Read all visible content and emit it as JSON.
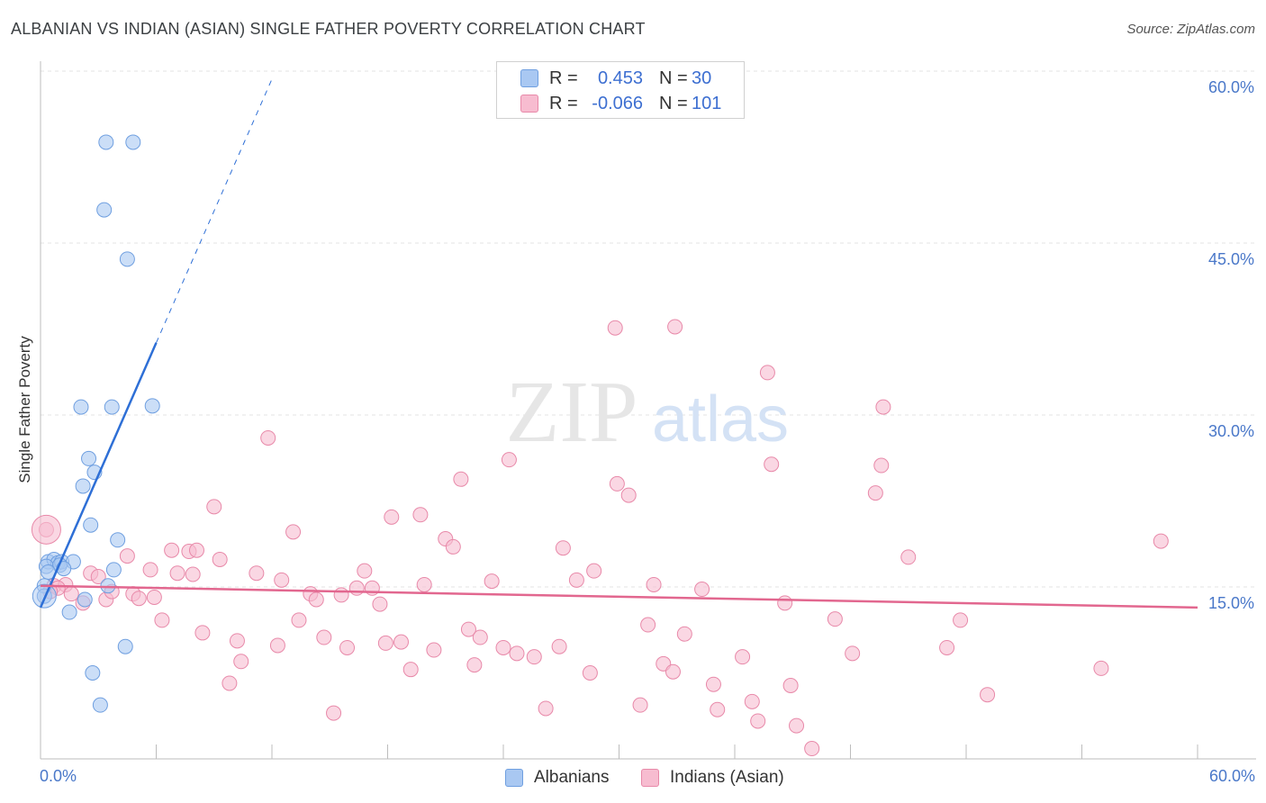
{
  "title": "ALBANIAN VS INDIAN (ASIAN) SINGLE FATHER POVERTY CORRELATION CHART",
  "source": "Source: ZipAtlas.com",
  "watermark": {
    "zip": "ZIP",
    "atlas": "atlas"
  },
  "legend": {
    "rows": [
      {
        "r_label": "R =",
        "r_value": "0.453",
        "n_label": "N =",
        "n_value": "30",
        "color": "#a9c8f2",
        "border": "#6f9fe0"
      },
      {
        "r_label": "R =",
        "r_value": "-0.066",
        "n_label": "N =",
        "n_value": "101",
        "color": "#f7bcd0",
        "border": "#e889a9"
      }
    ]
  },
  "bottom_legend": [
    {
      "label": "Albanians",
      "color": "#a9c8f2",
      "border": "#6f9fe0"
    },
    {
      "label": "Indians (Asian)",
      "color": "#f7bcd0",
      "border": "#e889a9"
    }
  ],
  "chart_data": {
    "type": "scatter",
    "title": "ALBANIAN VS INDIAN (ASIAN) SINGLE FATHER POVERTY CORRELATION CHART",
    "xlabel": "",
    "ylabel": "Single Father Poverty",
    "xlim": [
      0,
      60
    ],
    "ylim": [
      0,
      60
    ],
    "x_tick_labels": [
      "0.0%",
      "60.0%"
    ],
    "y_tick_labels": [
      "15.0%",
      "30.0%",
      "45.0%",
      "60.0%"
    ],
    "y_ticks": [
      15,
      30,
      45,
      60
    ],
    "grid": "horizontal dashed",
    "legend_position": "top-center",
    "series": [
      {
        "name": "Albanians",
        "color": "#6f9fe0",
        "fill": "#a9c8f2",
        "r": 0.453,
        "n": 30,
        "trend": {
          "x0": 0.0,
          "y0": 13.2,
          "x1": 6.0,
          "y1": 36.3,
          "dash_x1": 12.0,
          "dash_y1": 59.3,
          "color": "#2e6fd6"
        },
        "points": [
          [
            3.4,
            53.8
          ],
          [
            4.8,
            53.8
          ],
          [
            3.3,
            47.9
          ],
          [
            4.5,
            43.6
          ],
          [
            2.1,
            30.7
          ],
          [
            3.7,
            30.7
          ],
          [
            5.8,
            30.8
          ],
          [
            2.5,
            26.2
          ],
          [
            2.8,
            25.0
          ],
          [
            2.2,
            23.8
          ],
          [
            2.6,
            20.4
          ],
          [
            4.0,
            19.1
          ],
          [
            0.4,
            17.2
          ],
          [
            0.7,
            17.4
          ],
          [
            0.9,
            17.1
          ],
          [
            1.1,
            17.2
          ],
          [
            1.7,
            17.2
          ],
          [
            0.3,
            16.8
          ],
          [
            1.0,
            16.9
          ],
          [
            1.2,
            16.6
          ],
          [
            3.8,
            16.5
          ],
          [
            0.4,
            16.3
          ],
          [
            0.2,
            15.1
          ],
          [
            3.5,
            15.1
          ],
          [
            2.3,
            13.9
          ],
          [
            1.5,
            12.8
          ],
          [
            4.4,
            9.8
          ],
          [
            2.7,
            7.5
          ],
          [
            3.1,
            4.7
          ],
          [
            0.2,
            14.2
          ]
        ]
      },
      {
        "name": "Indians (Asian)",
        "color": "#e889a9",
        "fill": "#f7bcd0",
        "r": -0.066,
        "n": 101,
        "trend": {
          "x0": 0.0,
          "y0": 15.1,
          "x1": 60.0,
          "y1": 13.2,
          "color": "#e2678f"
        },
        "points": [
          [
            0.3,
            20.0
          ],
          [
            0.7,
            15.1
          ],
          [
            1.3,
            15.2
          ],
          [
            0.9,
            14.9
          ],
          [
            1.6,
            14.4
          ],
          [
            2.2,
            13.6
          ],
          [
            2.6,
            16.2
          ],
          [
            3.0,
            15.9
          ],
          [
            3.4,
            13.9
          ],
          [
            3.7,
            14.6
          ],
          [
            4.5,
            17.7
          ],
          [
            4.8,
            14.4
          ],
          [
            5.1,
            14.0
          ],
          [
            5.7,
            16.5
          ],
          [
            5.9,
            14.1
          ],
          [
            6.3,
            12.1
          ],
          [
            6.8,
            18.2
          ],
          [
            7.1,
            16.2
          ],
          [
            7.7,
            18.1
          ],
          [
            7.9,
            16.1
          ],
          [
            8.1,
            18.2
          ],
          [
            8.4,
            11.0
          ],
          [
            9.0,
            22.0
          ],
          [
            9.3,
            17.4
          ],
          [
            9.8,
            6.6
          ],
          [
            10.2,
            10.3
          ],
          [
            10.4,
            8.5
          ],
          [
            11.2,
            16.2
          ],
          [
            11.8,
            28.0
          ],
          [
            12.3,
            9.9
          ],
          [
            12.5,
            15.6
          ],
          [
            13.1,
            19.8
          ],
          [
            13.4,
            12.1
          ],
          [
            14.0,
            14.4
          ],
          [
            14.3,
            13.9
          ],
          [
            14.7,
            10.6
          ],
          [
            15.2,
            4.0
          ],
          [
            15.6,
            14.3
          ],
          [
            15.9,
            9.7
          ],
          [
            16.4,
            14.9
          ],
          [
            16.8,
            16.4
          ],
          [
            17.2,
            14.9
          ],
          [
            17.6,
            13.5
          ],
          [
            17.9,
            10.1
          ],
          [
            18.2,
            21.1
          ],
          [
            18.7,
            10.2
          ],
          [
            19.2,
            7.8
          ],
          [
            19.7,
            21.3
          ],
          [
            19.9,
            15.2
          ],
          [
            20.4,
            9.5
          ],
          [
            21.0,
            19.2
          ],
          [
            21.4,
            18.5
          ],
          [
            21.8,
            24.4
          ],
          [
            22.2,
            11.3
          ],
          [
            22.5,
            8.2
          ],
          [
            22.8,
            10.6
          ],
          [
            23.4,
            15.5
          ],
          [
            24.0,
            9.7
          ],
          [
            24.3,
            26.1
          ],
          [
            24.7,
            9.2
          ],
          [
            25.6,
            8.9
          ],
          [
            26.2,
            4.4
          ],
          [
            26.9,
            9.8
          ],
          [
            27.1,
            18.4
          ],
          [
            27.8,
            15.6
          ],
          [
            28.5,
            7.5
          ],
          [
            28.7,
            16.4
          ],
          [
            29.8,
            37.6
          ],
          [
            29.9,
            24.0
          ],
          [
            30.5,
            23.0
          ],
          [
            31.1,
            4.7
          ],
          [
            31.5,
            11.7
          ],
          [
            31.8,
            15.2
          ],
          [
            32.3,
            8.3
          ],
          [
            32.8,
            7.6
          ],
          [
            32.9,
            37.7
          ],
          [
            33.4,
            10.9
          ],
          [
            34.3,
            14.8
          ],
          [
            34.9,
            6.5
          ],
          [
            35.1,
            4.3
          ],
          [
            36.4,
            8.9
          ],
          [
            36.9,
            5.0
          ],
          [
            37.2,
            3.3
          ],
          [
            37.7,
            33.7
          ],
          [
            37.9,
            25.7
          ],
          [
            38.6,
            13.6
          ],
          [
            38.9,
            6.4
          ],
          [
            39.2,
            2.9
          ],
          [
            40.0,
            0.9
          ],
          [
            41.2,
            12.2
          ],
          [
            42.1,
            9.2
          ],
          [
            43.3,
            23.2
          ],
          [
            43.6,
            25.6
          ],
          [
            43.7,
            30.7
          ],
          [
            45.0,
            17.6
          ],
          [
            47.0,
            9.7
          ],
          [
            47.7,
            12.1
          ],
          [
            49.1,
            5.6
          ],
          [
            55.0,
            7.9
          ],
          [
            58.1,
            19.0
          ],
          [
            0.5,
            14.6
          ]
        ]
      }
    ]
  }
}
